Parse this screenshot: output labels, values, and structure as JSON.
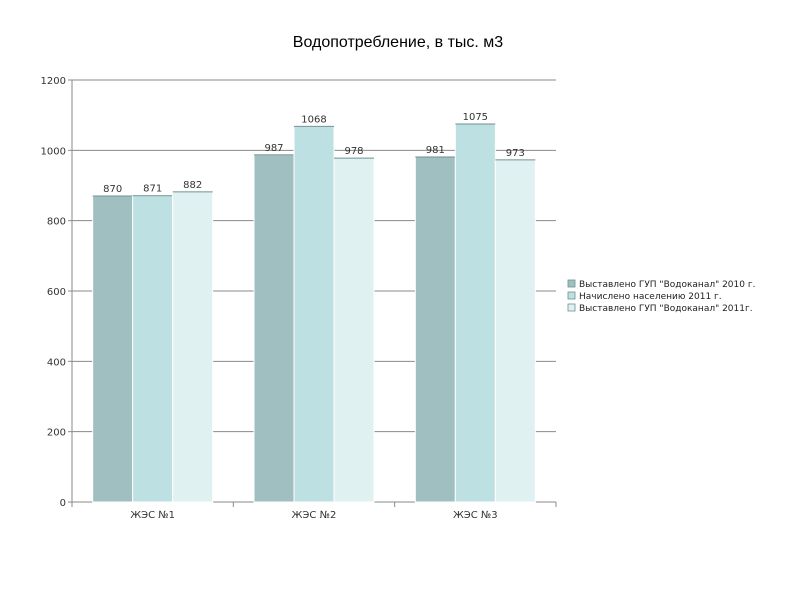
{
  "chart_data": {
    "type": "bar",
    "title": "Водопотребление, в тыс. м3",
    "xlabel": "",
    "ylabel": "",
    "categories": [
      "ЖЭС №1",
      "ЖЭС №2",
      "ЖЭС №3"
    ],
    "series": [
      {
        "name": "Выставлено ГУП \"Водоканал\" 2010 г.",
        "values": [
          870,
          987,
          981
        ],
        "color": "#9fbfc0"
      },
      {
        "name": "Начислено населению 2011 г.",
        "values": [
          871,
          1068,
          1075
        ],
        "color": "#bde0e2"
      },
      {
        "name": "Выставлено ГУП \"Водоканал\" 2011г.",
        "values": [
          882,
          978,
          973
        ],
        "color": "#e0f1f2"
      }
    ],
    "ylim": [
      0,
      1200
    ],
    "yticks": [
      0,
      200,
      400,
      600,
      800,
      1000,
      1200
    ],
    "grid": true,
    "legend_position": "right"
  }
}
